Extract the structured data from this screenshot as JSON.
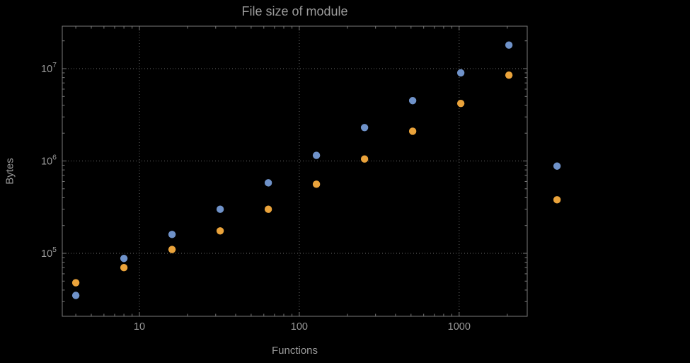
{
  "chart_data": {
    "type": "scatter",
    "title": "File size of module",
    "xlabel": "Functions",
    "ylabel": "Bytes",
    "x_scale": "log",
    "y_scale": "log",
    "grid": "dotted",
    "legend": "none",
    "x": [
      4,
      8,
      16,
      32,
      64,
      128,
      256,
      512,
      1024,
      2048,
      4096
    ],
    "series": [
      {
        "name": "blue",
        "color": "#6f92c9",
        "values": [
          35000,
          88000,
          160000,
          300000,
          580000,
          1150000,
          2300000,
          4500000,
          9000000,
          18000000,
          880000
        ]
      },
      {
        "name": "orange",
        "color": "#eaa33b",
        "values": [
          48000,
          70000,
          110000,
          175000,
          300000,
          560000,
          1050000,
          2100000,
          4200000,
          8500000,
          380000
        ]
      }
    ],
    "x_ticks": [
      10,
      100,
      1000
    ],
    "x_tick_labels": [
      "10",
      "100",
      "1000"
    ],
    "y_ticks": [
      100000,
      1000000,
      10000000
    ],
    "y_tick_labels": [
      "10^5",
      "10^6",
      "10^7"
    ],
    "x_range": [
      2.6,
      3300
    ],
    "y_range": [
      21000,
      29000000
    ],
    "colors": {
      "background": "#000000",
      "frame": "#7a7a7a",
      "grid": "#6a6a6a",
      "text": "#9a9a9a"
    }
  }
}
